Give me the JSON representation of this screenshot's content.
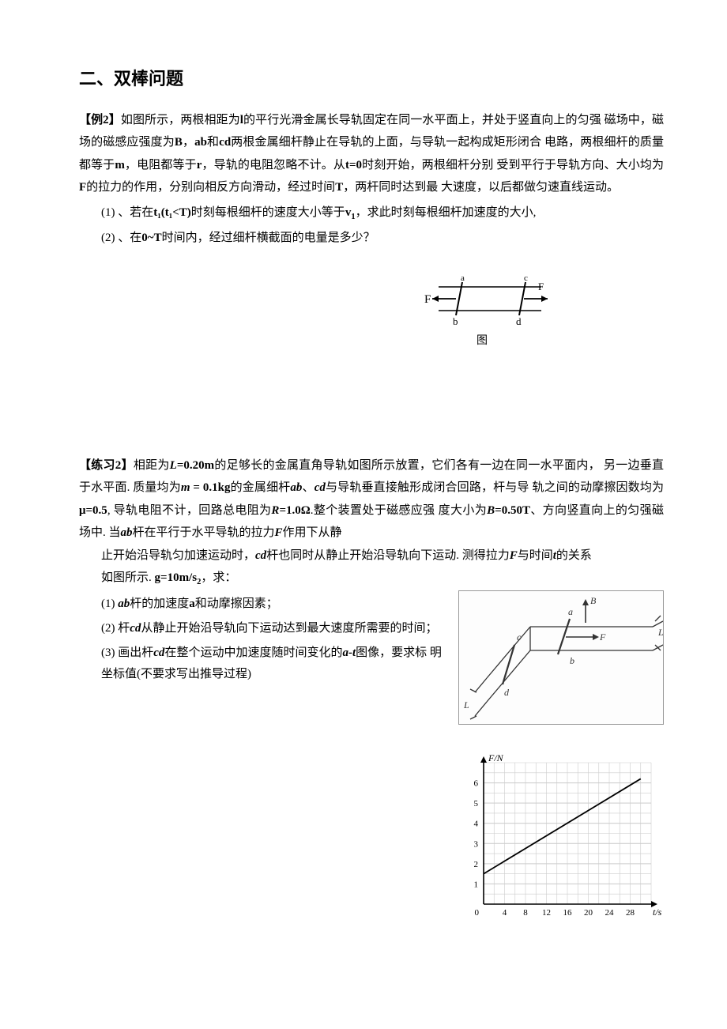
{
  "section_title": "二、双棒问题",
  "example2": {
    "tag": "【例2】",
    "text_parts": {
      "p1a": "如图所示，两根相距为",
      "p1_l": "l",
      "p1b": "的平行光滑金属长导轨固定在同一水平面上，并处于竖直向上的匀强 磁场中，磁场的磁感应强度为",
      "p1_B": "B",
      "p1c": "，",
      "p1_ab": "ab",
      "p1d": "和",
      "p1_cd": "cd",
      "p1e": "两根金属细杆静止在导轨的上面，与导轨一起构成矩形闭合 电路，两根细杆的质量都等于",
      "p1_m": "m",
      "p1f": "，电阻都等于",
      "p1_r": "r",
      "p1g": "，导轨的电阻忽略不计。从",
      "p1_t0": "t=0",
      "p1h": "时刻开始，两根细杆分别 受到平行于导轨方向、大小均为",
      "p1_F": "F",
      "p1i": "的拉力的作用，分别向相反方向滑动，经过时间",
      "p1_T": "T",
      "p1j": "，两杆同时达到最 大速度，以后都做匀速直线运动。"
    },
    "q1": {
      "num": "(1)",
      "a": "、若在",
      "t1": "t₁(t₁<T)",
      "b": "时刻每根细杆的速度大小等于",
      "v1": "v",
      "v1sub": "1",
      "c": "，求此时刻每根细杆加速度的大小,"
    },
    "q2": {
      "num": "(2)",
      "a": "、在",
      "range": "0~T",
      "b": "时间内，经过细杆横截面的电量是多少？"
    },
    "figure": {
      "label": "图",
      "F_left": "F",
      "F_right": "F",
      "a": "a",
      "b": "b",
      "c": "c",
      "d": "d",
      "stroke": "#000000",
      "width": 170,
      "height": 70
    }
  },
  "practice2": {
    "tag": "【练习2】",
    "text_parts": {
      "a": "相距为",
      "L": "L",
      "Leq": "=",
      "Lval": "0.20m",
      "b": "的足够长的金属直角导轨如图所示放置，它们各有一边在同一水平面内， 另一边垂直于水平面. 质量均为",
      "m": "m",
      "meq": " = ",
      "mval": "0.1kg",
      "c": "的金属细杆",
      "ab": "ab",
      "dot1": "、",
      "cd": "cd",
      "d": "与导轨垂直接触形成闭合回路，杆与导 轨之间的动摩擦因数均为",
      "mu": "μ=0.5",
      "e": ", 导轨电阻不计，回路总电阻为",
      "R": "R",
      "Req": "=",
      "Rval": "1.0Ω",
      "f": ".整个装置处于磁感应强 度大小为",
      "Bvar": "B",
      "Beq": "=",
      "Bval": "0.50T",
      "g": "、方向竖直向上的匀强磁场中. 当",
      "ab2": "ab",
      "h": "杆在平行于水平导轨的拉力",
      "Fvar": "F",
      "i": "作用下从静",
      "j": "止开始沿导轨匀加速运动时，",
      "cd2": "cd",
      "k": "杆也同时从静止开始沿导轨向下运动. 测得拉力",
      "Fvar2": "F",
      "l": "与时间",
      "tvar": "t",
      "m2": "的关系",
      "n": "如图所示. ",
      "g_eq": "g=10m/s",
      "g_sup": "2",
      "o": "，求："
    },
    "q1": {
      "num": "(1)",
      "a": "  ",
      "ab": "ab",
      "b": "杆的加速度",
      "avar": "a",
      "c": "和动摩擦因素；"
    },
    "q2": {
      "num": "(2)",
      "a": "  杆",
      "cd": "cd",
      "b": "从静止开始沿导轨向下运动达到最大速度所需要的时间；"
    },
    "q3": {
      "num": "(3)",
      "a": "  画出杆",
      "cd": "cd",
      "b": "在整个运动中加速度随时间变化的",
      "at": "a-t",
      "c": "图像，要求标 明坐标值(不要求写出推导过程)"
    },
    "diagram3d": {
      "labels": {
        "a": "a",
        "b": "b",
        "c": "c",
        "d": "d",
        "B": "B",
        "F": "F",
        "L1": "L",
        "L2": "L"
      },
      "stroke": "#333333"
    },
    "graph": {
      "ylabel": "F/N",
      "xlabel": "t/s",
      "x_ticks": [
        0,
        4,
        8,
        12,
        16,
        20,
        24,
        28
      ],
      "y_ticks": [
        1,
        2,
        3,
        4,
        5,
        6
      ],
      "xlim": [
        0,
        32
      ],
      "ylim": [
        0,
        7
      ],
      "grid_color": "#cccccc",
      "axis_color": "#000000",
      "line_color": "#000000",
      "font_size": 11,
      "line_points": [
        [
          0,
          1.5
        ],
        [
          30,
          6.2
        ]
      ]
    }
  }
}
